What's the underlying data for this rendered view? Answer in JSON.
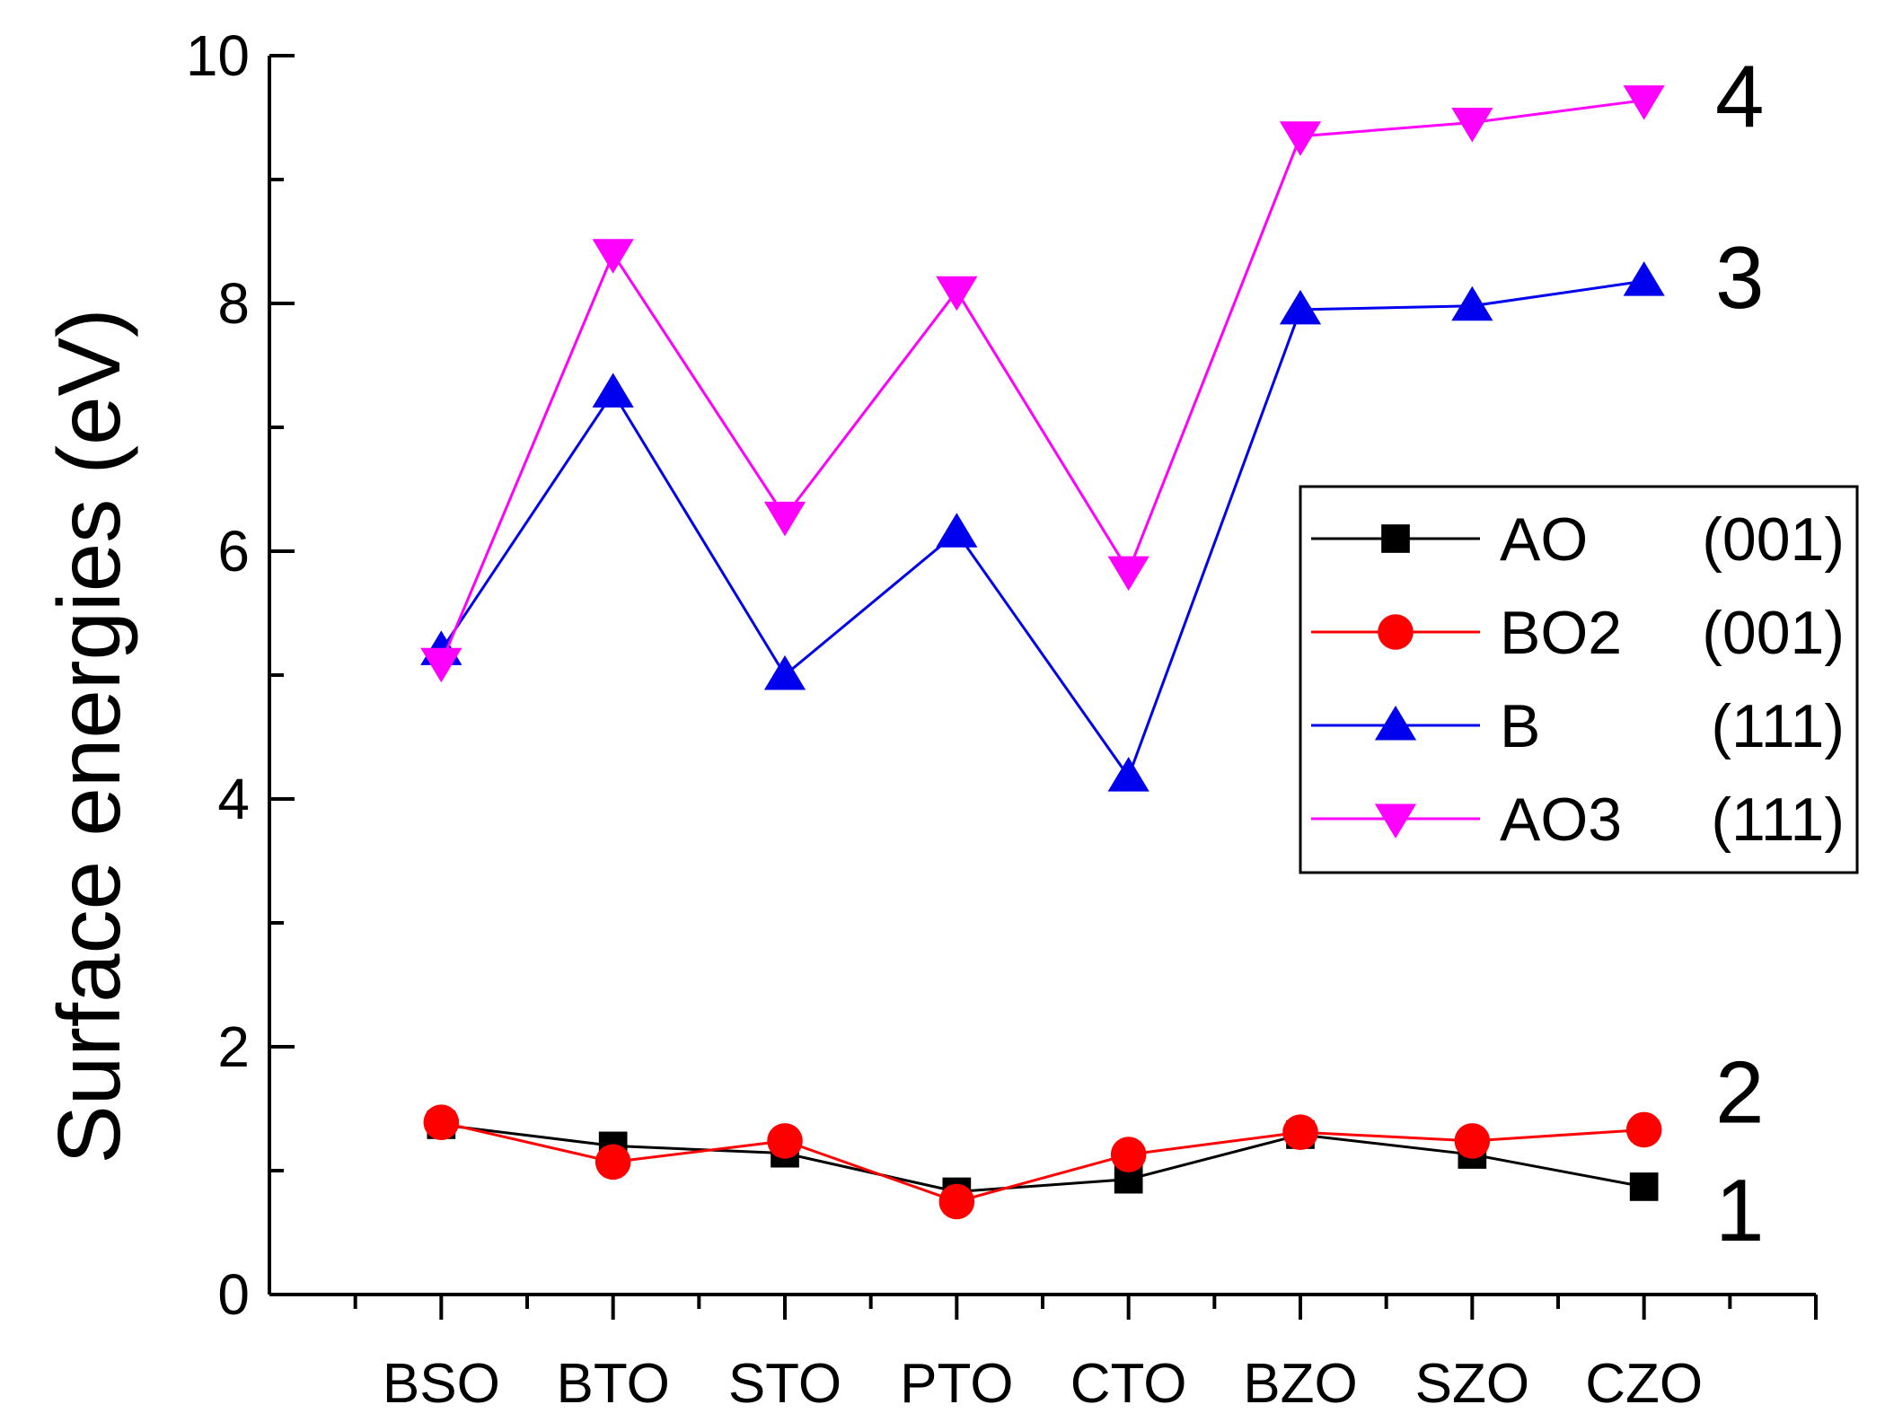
{
  "chart_data": {
    "type": "line",
    "title": "",
    "xlabel": "",
    "ylabel": "Surface energies (eV)",
    "categories": [
      "BSO",
      "BTO",
      "STO",
      "PTO",
      "CTO",
      "BZO",
      "SZO",
      "CZO"
    ],
    "ylim": [
      0,
      10
    ],
    "yticks": [
      "0",
      "2",
      "4",
      "6",
      "8",
      "10"
    ],
    "grid": false,
    "legend_position": "right",
    "series": [
      {
        "name": "AO",
        "plane": "(001)",
        "color": "#000000",
        "marker": "square",
        "values": [
          1.37,
          1.2,
          1.14,
          0.83,
          0.93,
          1.29,
          1.13,
          0.87
        ]
      },
      {
        "name": "BO2",
        "plane": "(001)",
        "color": "#ff0000",
        "marker": "circle",
        "values": [
          1.39,
          1.07,
          1.24,
          0.75,
          1.13,
          1.31,
          1.24,
          1.33
        ]
      },
      {
        "name": "B",
        "plane": "(111)",
        "color": "#0000ee",
        "marker": "triangle-up",
        "values": [
          5.2,
          7.28,
          5.0,
          6.15,
          4.18,
          7.95,
          7.98,
          8.18
        ]
      },
      {
        "name": "AO3",
        "plane": "(111)",
        "color": "#ff00ff",
        "marker": "triangle-down",
        "values": [
          5.1,
          8.4,
          6.28,
          8.1,
          5.84,
          9.35,
          9.46,
          9.64
        ]
      }
    ],
    "annotations": [
      {
        "label": "1",
        "series": 0
      },
      {
        "label": "2",
        "series": 1
      },
      {
        "label": "3",
        "series": 2
      },
      {
        "label": "4",
        "series": 3
      }
    ]
  }
}
